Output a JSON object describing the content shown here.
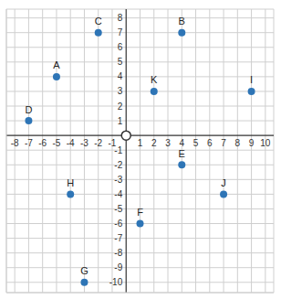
{
  "chart_data": {
    "type": "scatter",
    "x": [
      -5,
      4,
      -2,
      -7,
      4,
      1,
      -3,
      -4,
      9,
      7,
      2
    ],
    "values": [
      4,
      7,
      7,
      1,
      -2,
      -6,
      -10,
      -4,
      3,
      -4,
      3
    ],
    "labels": [
      "A",
      "B",
      "C",
      "D",
      "E",
      "F",
      "G",
      "H",
      "I",
      "J",
      "K"
    ],
    "color": "#2e75b6",
    "marker": "circle",
    "xlim": [
      -8.6,
      10.6
    ],
    "ylim": [
      -10.7,
      8.6
    ],
    "xticks": [
      -8,
      -7,
      -6,
      -5,
      -4,
      -3,
      -2,
      -1,
      1,
      2,
      3,
      4,
      5,
      6,
      7,
      8,
      9,
      10
    ],
    "yticks": [
      -10,
      -9,
      -8,
      -7,
      -6,
      -5,
      -4,
      -3,
      -2,
      -1,
      1,
      2,
      3,
      4,
      5,
      6,
      7,
      8
    ],
    "grid": true
  }
}
